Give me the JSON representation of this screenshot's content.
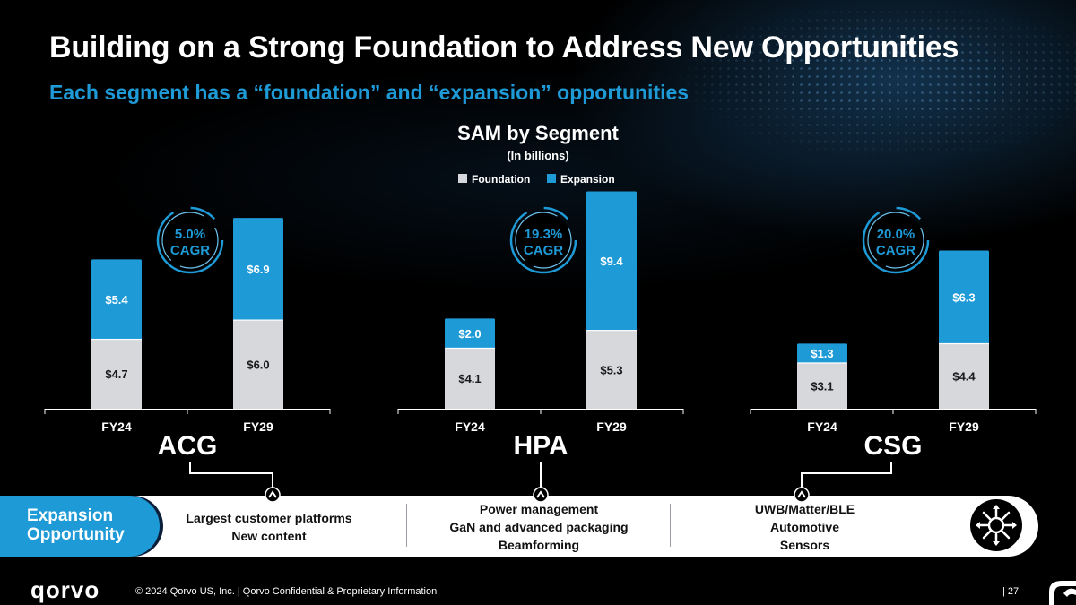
{
  "header": {
    "title": "Building on a Strong Foundation to Address New Opportunities",
    "subtitle": "Each segment has a “foundation” and “expansion” opportunities"
  },
  "chart_data": {
    "type": "bar",
    "stacked": true,
    "title": "SAM by Segment",
    "subtitle": "(In billions)",
    "legend": [
      {
        "name": "Foundation",
        "color": "#d6d8dc"
      },
      {
        "name": "Expansion",
        "color": "#1e9ad6"
      }
    ],
    "value_prefix": "$",
    "groups": [
      {
        "name": "ACG",
        "cagr": "5.0%",
        "cagr_label": "CAGR",
        "categories": [
          "FY24",
          "FY29"
        ],
        "series": [
          {
            "name": "Foundation",
            "values": [
              4.7,
              6.0
            ],
            "labels": [
              "$4.7",
              "$6.0"
            ]
          },
          {
            "name": "Expansion",
            "values": [
              5.4,
              6.9
            ],
            "labels": [
              "$5.4",
              "$6.9"
            ]
          }
        ]
      },
      {
        "name": "HPA",
        "cagr": "19.3%",
        "cagr_label": "CAGR",
        "categories": [
          "FY24",
          "FY29"
        ],
        "series": [
          {
            "name": "Foundation",
            "values": [
              4.1,
              5.3
            ],
            "labels": [
              "$4.1",
              "$5.3"
            ]
          },
          {
            "name": "Expansion",
            "values": [
              2.0,
              9.4
            ],
            "labels": [
              "$2.0",
              "$9.4"
            ]
          }
        ]
      },
      {
        "name": "CSG",
        "cagr": "20.0%",
        "cagr_label": "CAGR",
        "categories": [
          "FY24",
          "FY29"
        ],
        "series": [
          {
            "name": "Foundation",
            "values": [
              3.1,
              4.4
            ],
            "labels": [
              "$3.1",
              "$4.4"
            ]
          },
          {
            "name": "Expansion",
            "values": [
              1.3,
              6.3
            ],
            "labels": [
              "$1.3",
              "$6.3"
            ]
          }
        ]
      }
    ]
  },
  "expansion": {
    "label_line1": "Expansion",
    "label_line2": "Opportunity",
    "columns": [
      {
        "items": [
          "Largest customer platforms",
          "New content"
        ]
      },
      {
        "items": [
          "Power management",
          "GaN and advanced packaging",
          "Beamforming"
        ]
      },
      {
        "items": [
          "UWB/Matter/BLE",
          "Automotive",
          "Sensors"
        ]
      }
    ],
    "icon": "network-hub-icon"
  },
  "footer": {
    "logo_text": "qorvo",
    "copyright": "© 2024 Qorvo US, Inc. | Qorvo Confidential & Proprietary Information",
    "page": "| 27"
  },
  "colors": {
    "accent": "#1e9ad6",
    "foundation": "#d6d8dc",
    "background": "#000000"
  }
}
